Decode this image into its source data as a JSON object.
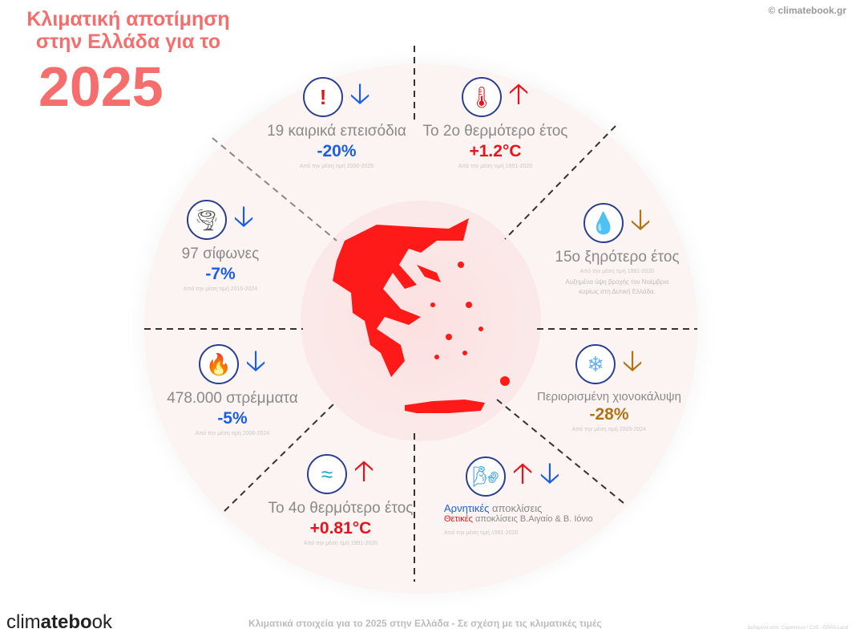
{
  "header": {
    "title_line1": "Κλιματική αποτίμηση",
    "title_line2": "στην Ελλάδα για το",
    "year": "2025",
    "copyright": "© climatebook.gr"
  },
  "colors": {
    "accent": "#f66d6d",
    "blue": "#1a5ee8",
    "red": "#e8141c",
    "brown": "#b07414",
    "map": "#ff1a1a"
  },
  "sectors": [
    {
      "id": "weather-events",
      "icon": "exclamation-icon",
      "trend": "down",
      "label": "19 καιρικά επεισόδια",
      "value": "-20%",
      "value_color": "blue",
      "source": "Από την μέση τιμή 2000-2025"
    },
    {
      "id": "temperature",
      "icon": "thermometer-icon",
      "trend": "up",
      "label": "Το 2ο θερμότερο έτος",
      "value": "+1.2°C",
      "value_color": "red",
      "source": "Από την μέση τιμή 1991-2020"
    },
    {
      "id": "drought",
      "icon": "water-drops-icon",
      "trend": "down",
      "label": "15ο ξηρότερο έτος",
      "value": "",
      "source": "Από την μέση τιμή 1991-2020",
      "note": "Αυξημένα ύψη βροχής τον Νοέμβριο κυρίως στη Δυτική Ελλάδα."
    },
    {
      "id": "snow",
      "icon": "snowflake-icon",
      "trend": "down",
      "label": "Περιορισμένη χιονοκάλυψη",
      "value": "-28%",
      "value_color": "brown",
      "source": "Από την μέση τιμή 2005-2024"
    },
    {
      "id": "wind",
      "icon": "wind-icon",
      "trend": "up-down",
      "label_neg": "Αρνητικές",
      "label_neg_rest": " αποκλίσεις",
      "label_pos": "Θετικές",
      "label_pos_rest": " αποκλίσεις Β.Αιγαίο & Β. Ιόνιο",
      "source": "Από την μέση τιμή 1991-2020"
    },
    {
      "id": "sea",
      "icon": "sea-waves-icon",
      "trend": "up",
      "label": "Το 4ο θερμότερο έτος",
      "value": "+0.81°C",
      "value_color": "red",
      "source": "Από την μέση τιμή 1991-2020"
    },
    {
      "id": "fires",
      "icon": "fire-icon",
      "trend": "down",
      "label": "478.000 στρέμματα",
      "value": "-5%",
      "value_color": "blue",
      "source": "Από την μέση τιμή 2006-2024"
    },
    {
      "id": "tornadoes",
      "icon": "tornado-icon",
      "trend": "down",
      "label": "97 σίφωνες",
      "value": "-7%",
      "value_color": "blue",
      "source": "Από την μέση τιμή 2010-2024"
    }
  ],
  "footer": {
    "brand_pre": "clim",
    "brand_bold": "atebo",
    "brand_post": "ok",
    "caption": "Κλιματικά στοιχεία για το 2025 στην Ελλάδα - Σε σχέση με τις κλιματικές τιμές",
    "sources": "Δεδομένα από: Copernicus / C3S - ERA5-Land"
  }
}
